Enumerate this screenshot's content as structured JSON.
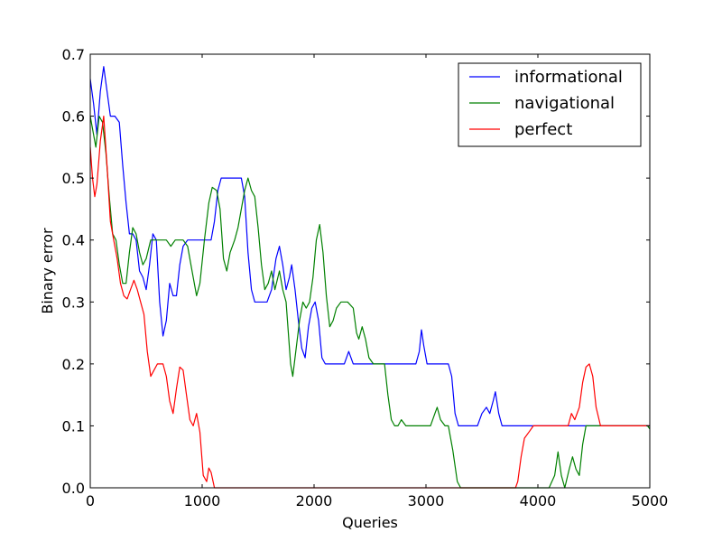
{
  "chart_data": {
    "type": "line",
    "title": "",
    "xlabel": "Queries",
    "ylabel": "Binary error",
    "xlim": [
      0,
      5000
    ],
    "ylim": [
      0,
      0.7
    ],
    "xticks": [
      0,
      1000,
      2000,
      3000,
      4000,
      5000
    ],
    "xtick_labels": [
      "0",
      "1000",
      "2000",
      "3000",
      "4000",
      "5000"
    ],
    "yticks": [
      0.0,
      0.1,
      0.2,
      0.3,
      0.4,
      0.5,
      0.6,
      0.7
    ],
    "ytick_labels": [
      "0.0",
      "0.1",
      "0.2",
      "0.3",
      "0.4",
      "0.5",
      "0.6",
      "0.7"
    ],
    "grid": false,
    "legend_position": "top-right",
    "series": [
      {
        "name": "informational",
        "color": "#0000ff",
        "points": [
          [
            0,
            0.66
          ],
          [
            30,
            0.62
          ],
          [
            60,
            0.57
          ],
          [
            90,
            0.64
          ],
          [
            120,
            0.68
          ],
          [
            150,
            0.64
          ],
          [
            180,
            0.6
          ],
          [
            220,
            0.6
          ],
          [
            260,
            0.59
          ],
          [
            290,
            0.52
          ],
          [
            320,
            0.46
          ],
          [
            350,
            0.41
          ],
          [
            380,
            0.41
          ],
          [
            410,
            0.4
          ],
          [
            440,
            0.35
          ],
          [
            470,
            0.34
          ],
          [
            500,
            0.32
          ],
          [
            530,
            0.36
          ],
          [
            560,
            0.41
          ],
          [
            590,
            0.4
          ],
          [
            620,
            0.3
          ],
          [
            650,
            0.245
          ],
          [
            680,
            0.27
          ],
          [
            710,
            0.33
          ],
          [
            740,
            0.31
          ],
          [
            770,
            0.31
          ],
          [
            800,
            0.36
          ],
          [
            830,
            0.39
          ],
          [
            870,
            0.4
          ],
          [
            1000,
            0.4
          ],
          [
            1080,
            0.4
          ],
          [
            1110,
            0.43
          ],
          [
            1140,
            0.48
          ],
          [
            1170,
            0.5
          ],
          [
            1350,
            0.5
          ],
          [
            1380,
            0.47
          ],
          [
            1410,
            0.38
          ],
          [
            1440,
            0.32
          ],
          [
            1470,
            0.3
          ],
          [
            1580,
            0.3
          ],
          [
            1620,
            0.32
          ],
          [
            1660,
            0.37
          ],
          [
            1690,
            0.39
          ],
          [
            1720,
            0.36
          ],
          [
            1750,
            0.32
          ],
          [
            1780,
            0.34
          ],
          [
            1800,
            0.36
          ],
          [
            1830,
            0.32
          ],
          [
            1860,
            0.27
          ],
          [
            1890,
            0.225
          ],
          [
            1920,
            0.21
          ],
          [
            1950,
            0.26
          ],
          [
            1980,
            0.29
          ],
          [
            2010,
            0.3
          ],
          [
            2040,
            0.27
          ],
          [
            2070,
            0.21
          ],
          [
            2100,
            0.2
          ],
          [
            2270,
            0.2
          ],
          [
            2310,
            0.22
          ],
          [
            2350,
            0.2
          ],
          [
            2910,
            0.2
          ],
          [
            2940,
            0.22
          ],
          [
            2960,
            0.255
          ],
          [
            2980,
            0.23
          ],
          [
            3010,
            0.2
          ],
          [
            3200,
            0.2
          ],
          [
            3230,
            0.18
          ],
          [
            3260,
            0.12
          ],
          [
            3290,
            0.1
          ],
          [
            3460,
            0.1
          ],
          [
            3500,
            0.12
          ],
          [
            3540,
            0.13
          ],
          [
            3570,
            0.12
          ],
          [
            3600,
            0.14
          ],
          [
            3620,
            0.155
          ],
          [
            3650,
            0.12
          ],
          [
            3680,
            0.1
          ],
          [
            5000,
            0.1
          ]
        ]
      },
      {
        "name": "navigational",
        "color": "#008000",
        "points": [
          [
            0,
            0.6
          ],
          [
            30,
            0.57
          ],
          [
            50,
            0.55
          ],
          [
            80,
            0.6
          ],
          [
            110,
            0.59
          ],
          [
            140,
            0.54
          ],
          [
            170,
            0.47
          ],
          [
            200,
            0.41
          ],
          [
            230,
            0.4
          ],
          [
            260,
            0.36
          ],
          [
            290,
            0.33
          ],
          [
            320,
            0.33
          ],
          [
            350,
            0.38
          ],
          [
            380,
            0.42
          ],
          [
            410,
            0.41
          ],
          [
            440,
            0.38
          ],
          [
            470,
            0.36
          ],
          [
            500,
            0.37
          ],
          [
            540,
            0.4
          ],
          [
            600,
            0.4
          ],
          [
            640,
            0.4
          ],
          [
            680,
            0.4
          ],
          [
            720,
            0.39
          ],
          [
            760,
            0.4
          ],
          [
            830,
            0.4
          ],
          [
            870,
            0.39
          ],
          [
            910,
            0.35
          ],
          [
            950,
            0.31
          ],
          [
            980,
            0.33
          ],
          [
            1020,
            0.4
          ],
          [
            1060,
            0.46
          ],
          [
            1090,
            0.485
          ],
          [
            1130,
            0.48
          ],
          [
            1160,
            0.45
          ],
          [
            1190,
            0.37
          ],
          [
            1220,
            0.35
          ],
          [
            1250,
            0.38
          ],
          [
            1290,
            0.4
          ],
          [
            1320,
            0.42
          ],
          [
            1350,
            0.45
          ],
          [
            1380,
            0.48
          ],
          [
            1410,
            0.5
          ],
          [
            1440,
            0.48
          ],
          [
            1470,
            0.47
          ],
          [
            1500,
            0.42
          ],
          [
            1530,
            0.36
          ],
          [
            1560,
            0.32
          ],
          [
            1590,
            0.33
          ],
          [
            1620,
            0.35
          ],
          [
            1650,
            0.32
          ],
          [
            1690,
            0.35
          ],
          [
            1720,
            0.32
          ],
          [
            1750,
            0.3
          ],
          [
            1770,
            0.25
          ],
          [
            1790,
            0.2
          ],
          [
            1810,
            0.18
          ],
          [
            1830,
            0.21
          ],
          [
            1870,
            0.27
          ],
          [
            1900,
            0.3
          ],
          [
            1930,
            0.29
          ],
          [
            1960,
            0.3
          ],
          [
            1990,
            0.34
          ],
          [
            2020,
            0.4
          ],
          [
            2050,
            0.425
          ],
          [
            2080,
            0.38
          ],
          [
            2110,
            0.31
          ],
          [
            2140,
            0.26
          ],
          [
            2170,
            0.27
          ],
          [
            2200,
            0.29
          ],
          [
            2240,
            0.3
          ],
          [
            2300,
            0.3
          ],
          [
            2350,
            0.29
          ],
          [
            2380,
            0.25
          ],
          [
            2400,
            0.24
          ],
          [
            2430,
            0.26
          ],
          [
            2460,
            0.24
          ],
          [
            2490,
            0.21
          ],
          [
            2530,
            0.2
          ],
          [
            2630,
            0.2
          ],
          [
            2660,
            0.15
          ],
          [
            2690,
            0.11
          ],
          [
            2720,
            0.1
          ],
          [
            2750,
            0.1
          ],
          [
            2780,
            0.11
          ],
          [
            2820,
            0.1
          ],
          [
            3040,
            0.1
          ],
          [
            3080,
            0.12
          ],
          [
            3100,
            0.13
          ],
          [
            3130,
            0.11
          ],
          [
            3170,
            0.1
          ],
          [
            3200,
            0.1
          ],
          [
            3240,
            0.06
          ],
          [
            3280,
            0.01
          ],
          [
            3310,
            0.0
          ],
          [
            4100,
            0.0
          ],
          [
            4150,
            0.02
          ],
          [
            4180,
            0.058
          ],
          [
            4210,
            0.02
          ],
          [
            4240,
            0.0
          ],
          [
            4280,
            0.03
          ],
          [
            4310,
            0.05
          ],
          [
            4340,
            0.03
          ],
          [
            4370,
            0.02
          ],
          [
            4400,
            0.07
          ],
          [
            4430,
            0.1
          ],
          [
            4980,
            0.1
          ],
          [
            5000,
            0.095
          ]
        ]
      },
      {
        "name": "perfect",
        "color": "#ff0000",
        "points": [
          [
            0,
            0.55
          ],
          [
            20,
            0.5
          ],
          [
            40,
            0.47
          ],
          [
            60,
            0.49
          ],
          [
            90,
            0.56
          ],
          [
            120,
            0.6
          ],
          [
            150,
            0.52
          ],
          [
            180,
            0.43
          ],
          [
            210,
            0.4
          ],
          [
            240,
            0.37
          ],
          [
            270,
            0.33
          ],
          [
            300,
            0.31
          ],
          [
            330,
            0.305
          ],
          [
            360,
            0.32
          ],
          [
            390,
            0.335
          ],
          [
            420,
            0.32
          ],
          [
            450,
            0.3
          ],
          [
            480,
            0.28
          ],
          [
            510,
            0.22
          ],
          [
            540,
            0.18
          ],
          [
            570,
            0.19
          ],
          [
            600,
            0.2
          ],
          [
            650,
            0.2
          ],
          [
            680,
            0.18
          ],
          [
            710,
            0.14
          ],
          [
            740,
            0.12
          ],
          [
            770,
            0.16
          ],
          [
            800,
            0.195
          ],
          [
            830,
            0.19
          ],
          [
            860,
            0.15
          ],
          [
            890,
            0.11
          ],
          [
            920,
            0.1
          ],
          [
            950,
            0.12
          ],
          [
            980,
            0.09
          ],
          [
            1010,
            0.02
          ],
          [
            1040,
            0.01
          ],
          [
            1060,
            0.032
          ],
          [
            1080,
            0.025
          ],
          [
            1110,
            0.0
          ],
          [
            3800,
            0.0
          ],
          [
            3820,
            0.01
          ],
          [
            3850,
            0.05
          ],
          [
            3880,
            0.08
          ],
          [
            3920,
            0.09
          ],
          [
            3960,
            0.1
          ],
          [
            4270,
            0.1
          ],
          [
            4300,
            0.12
          ],
          [
            4330,
            0.11
          ],
          [
            4370,
            0.13
          ],
          [
            4400,
            0.17
          ],
          [
            4430,
            0.195
          ],
          [
            4460,
            0.2
          ],
          [
            4490,
            0.18
          ],
          [
            4520,
            0.13
          ],
          [
            4560,
            0.1
          ],
          [
            5000,
            0.1
          ]
        ]
      }
    ]
  }
}
